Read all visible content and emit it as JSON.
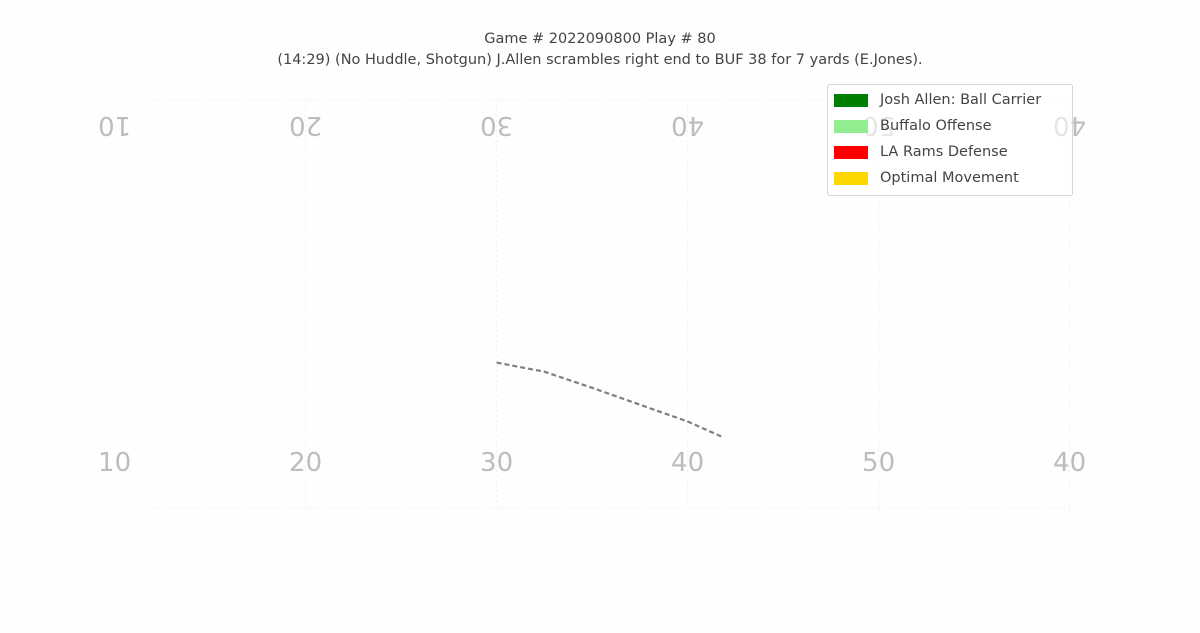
{
  "chart_data": {
    "type": "scatter",
    "title": "Game # 2022090800 Play # 80",
    "subtitle": "(14:29) (No Huddle, Shotgun) J.Allen scrambles right end to BUF 38 for 7 yards (E.Jones).",
    "field_numbers_bottom": [
      "10",
      "20",
      "30",
      "40",
      "50",
      "40"
    ],
    "field_numbers_top": [
      "10",
      "20",
      "30",
      "40",
      "50",
      "40"
    ],
    "legend": [
      {
        "label": "Josh Allen: Ball Carrier",
        "color": "#008000"
      },
      {
        "label": "Buffalo Offense",
        "color": "#90ee90"
      },
      {
        "label": "LA Rams Defense",
        "color": "#ff0000"
      },
      {
        "label": "Optimal Movement",
        "color": "#ffd700"
      }
    ],
    "optimal_path": {
      "color": "#808080",
      "style": "dashed",
      "x": [
        26.0,
        28.5,
        31.0,
        33.5,
        36.0,
        37.8
      ],
      "y": [
        19.0,
        17.8,
        15.7,
        13.5,
        11.3,
        9.3
      ]
    },
    "x_range": [
      0,
      60
    ],
    "y_range": [
      0,
      53.3
    ],
    "grid": false
  }
}
